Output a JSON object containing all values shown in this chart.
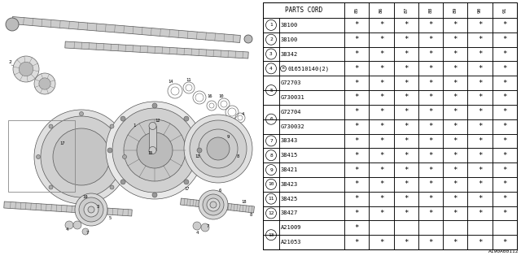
{
  "bg_color": "#ffffff",
  "table": {
    "header_label": "PARTS CORD",
    "columns": [
      "85",
      "86",
      "87",
      "88",
      "89",
      "90",
      "91"
    ],
    "rows": [
      {
        "num": "1",
        "span": 1,
        "bmark": false,
        "part": "38100",
        "marks": [
          1,
          1,
          1,
          1,
          1,
          1,
          1
        ]
      },
      {
        "num": "2",
        "span": 1,
        "bmark": false,
        "part": "38100",
        "marks": [
          1,
          1,
          1,
          1,
          1,
          1,
          1
        ]
      },
      {
        "num": "3",
        "span": 1,
        "bmark": false,
        "part": "38342",
        "marks": [
          1,
          1,
          1,
          1,
          1,
          1,
          1
        ]
      },
      {
        "num": "4",
        "span": 1,
        "bmark": true,
        "part": "016510140(2)",
        "marks": [
          1,
          1,
          1,
          1,
          1,
          1,
          1
        ]
      },
      {
        "num": "5",
        "span": 2,
        "bmark": false,
        "part": "G72703",
        "marks": [
          1,
          1,
          1,
          1,
          1,
          1,
          1
        ]
      },
      {
        "num": "",
        "span": 0,
        "bmark": false,
        "part": "G730031",
        "marks": [
          1,
          1,
          1,
          1,
          1,
          1,
          1
        ]
      },
      {
        "num": "6",
        "span": 2,
        "bmark": false,
        "part": "G72704",
        "marks": [
          1,
          1,
          1,
          1,
          1,
          1,
          1
        ]
      },
      {
        "num": "",
        "span": 0,
        "bmark": false,
        "part": "G730032",
        "marks": [
          1,
          1,
          1,
          1,
          1,
          1,
          1
        ]
      },
      {
        "num": "7",
        "span": 1,
        "bmark": false,
        "part": "38343",
        "marks": [
          1,
          1,
          1,
          1,
          1,
          1,
          1
        ]
      },
      {
        "num": "8",
        "span": 1,
        "bmark": false,
        "part": "38415",
        "marks": [
          1,
          1,
          1,
          1,
          1,
          1,
          1
        ]
      },
      {
        "num": "9",
        "span": 1,
        "bmark": false,
        "part": "38421",
        "marks": [
          1,
          1,
          1,
          1,
          1,
          1,
          1
        ]
      },
      {
        "num": "10",
        "span": 1,
        "bmark": false,
        "part": "38423",
        "marks": [
          1,
          1,
          1,
          1,
          1,
          1,
          1
        ]
      },
      {
        "num": "11",
        "span": 1,
        "bmark": false,
        "part": "38425",
        "marks": [
          1,
          1,
          1,
          1,
          1,
          1,
          1
        ]
      },
      {
        "num": "12",
        "span": 1,
        "bmark": false,
        "part": "38427",
        "marks": [
          1,
          1,
          1,
          1,
          1,
          1,
          1
        ]
      },
      {
        "num": "13",
        "span": 2,
        "bmark": false,
        "part": "A21009",
        "marks": [
          1,
          0,
          0,
          0,
          0,
          0,
          0
        ]
      },
      {
        "num": "",
        "span": 0,
        "bmark": false,
        "part": "A21053",
        "marks": [
          1,
          1,
          1,
          1,
          1,
          1,
          1
        ]
      }
    ]
  },
  "ref_code": "A190A00112",
  "text_color": "#000000",
  "line_color": "#000000"
}
